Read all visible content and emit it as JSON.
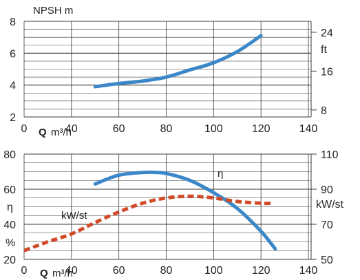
{
  "colors": {
    "primary_curve": "#3b87c8",
    "power_curve": "#d14a28",
    "grid": "#3a3a3a",
    "text": "#222222"
  },
  "chart_data": [
    {
      "type": "line",
      "title": "NPSH m",
      "xlabel_q": "Q",
      "xlabel_unit": "m³/h",
      "x_ticks": [
        "0",
        "40",
        "60",
        "80",
        "100",
        "120",
        "140"
      ],
      "y_ticks": [
        "2",
        "4",
        "6",
        "8"
      ],
      "right_ticks": [
        "8",
        "16",
        "24"
      ],
      "right_unit": "ft",
      "xlim": [
        20,
        140
      ],
      "ylim": [
        2,
        8
      ],
      "right_ylim": [
        6.56,
        26.25
      ],
      "series": [
        {
          "name": "",
          "axis": "left",
          "color": "#3b87c8",
          "x": [
            50,
            60,
            70,
            80,
            90,
            100,
            110,
            120
          ],
          "y": [
            3.9,
            4.1,
            4.25,
            4.5,
            4.95,
            5.4,
            6.1,
            7.1
          ]
        }
      ]
    },
    {
      "type": "line",
      "xlabel_q": "Q",
      "xlabel_unit": "m³/h",
      "x_ticks": [
        "0",
        "40",
        "60",
        "80",
        "100",
        "120",
        "140"
      ],
      "y_ticks": [
        "20",
        "40",
        "60",
        "80"
      ],
      "y_side_labels": [
        "η",
        "%"
      ],
      "right_ticks": [
        "50",
        "70",
        "90",
        "110"
      ],
      "right_unit": "kW/st",
      "xlim": [
        20,
        140
      ],
      "ylim": [
        20,
        80
      ],
      "right_ylim": [
        50,
        110
      ],
      "series": [
        {
          "name": "η",
          "axis": "left",
          "style": "solid",
          "color": "#3b87c8",
          "x": [
            50,
            60,
            70,
            75,
            80,
            90,
            100,
            110,
            120,
            126
          ],
          "y": [
            63,
            68,
            69.5,
            69.6,
            69,
            65,
            58,
            49,
            36,
            26
          ]
        },
        {
          "name": "kW/st",
          "axis": "right",
          "style": "dashed",
          "color": "#d14a28",
          "x": [
            20,
            30,
            40,
            50,
            60,
            70,
            80,
            90,
            100,
            110,
            120,
            125
          ],
          "y": [
            55,
            60,
            64.5,
            71,
            77,
            82,
            85,
            86,
            85,
            83,
            82,
            82
          ]
        }
      ]
    }
  ]
}
